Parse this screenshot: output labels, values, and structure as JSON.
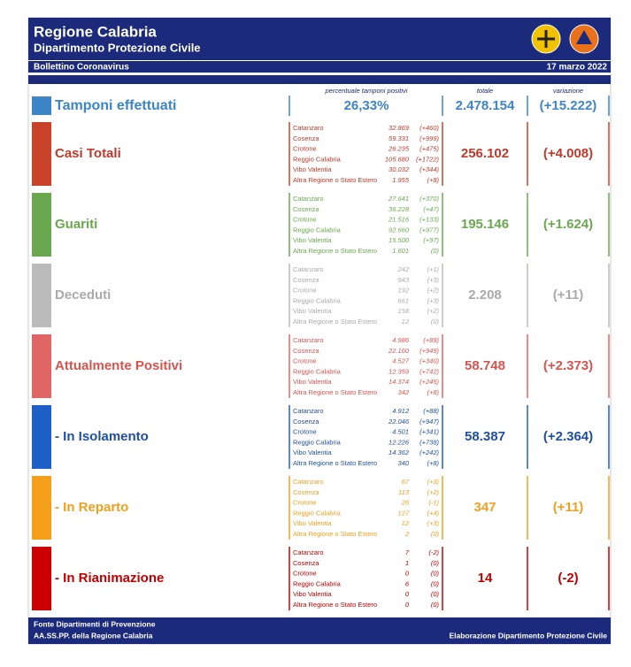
{
  "header": {
    "title": "Regione Calabria",
    "subtitle": "Dipartimento Protezione Civile",
    "bulletin": "Bollettino Coronavirus",
    "date": "17 marzo 2022"
  },
  "columns": {
    "percent": "percentuale tamponi positivi",
    "total": "totale",
    "variation": "variazione"
  },
  "tamponi": {
    "label": "Tamponi effettuati",
    "percent": "26,33%",
    "total": "2.478.154",
    "variation": "(+15.222)",
    "color": "#3d85c6"
  },
  "sections": [
    {
      "label": "Casi Totali",
      "color": "#c8432a",
      "text_color": "#c0392b",
      "rows": [
        [
          "Catanzaro",
          "32.869",
          "(+460)"
        ],
        [
          "Cosenza",
          "59.331",
          "(+999)"
        ],
        [
          "Crotone",
          "26.235",
          "(+475)"
        ],
        [
          "Reggio Calabria",
          "105.680",
          "(+1722)"
        ],
        [
          "Vibo Valentia",
          "30.032",
          "(+344)"
        ],
        [
          "Altra Regione o Stato Estero",
          "1.955",
          "(+8)"
        ]
      ],
      "total": "256.102",
      "variation": "(+4.008)"
    },
    {
      "label": "Guariti",
      "color": "#6aa84f",
      "text_color": "#6aa84f",
      "rows": [
        [
          "Catanzaro",
          "27.641",
          "(+370)"
        ],
        [
          "Cosenza",
          "36.228",
          "(+47)"
        ],
        [
          "Crotone",
          "21.516",
          "(+133)"
        ],
        [
          "Reggio Calabria",
          "92.660",
          "(+977)"
        ],
        [
          "Vibo Valentia",
          "15.500",
          "(+97)"
        ],
        [
          "Altra Regione o Stato Estero",
          "1.601",
          "(0)"
        ]
      ],
      "total": "195.146",
      "variation": "(+1.624)"
    },
    {
      "label": "Deceduti",
      "color": "#bbbbbb",
      "text_color": "#aaaaaa",
      "rows": [
        [
          "Catanzaro",
          "242",
          "(+1)"
        ],
        [
          "Cosenza",
          "943",
          "(+3)"
        ],
        [
          "Crotone",
          "192",
          "(+2)"
        ],
        [
          "Reggio Calabria",
          "661",
          "(+3)"
        ],
        [
          "Vibo Valentia",
          "158",
          "(+2)"
        ],
        [
          "Altra Regione o Stato Estero",
          "12",
          "(0)"
        ]
      ],
      "total": "2.208",
      "variation": "(+11)"
    },
    {
      "label": "Attualmente Positivi",
      "color": "#e06666",
      "text_color": "#d9534f",
      "rows": [
        [
          "Catanzaro",
          "4.986",
          "(+89)"
        ],
        [
          "Cosenza",
          "22.160",
          "(+949)"
        ],
        [
          "Crotone",
          "4.527",
          "(+340)"
        ],
        [
          "Reggio Calabria",
          "12.359",
          "(+742)"
        ],
        [
          "Vibo Valentia",
          "14.374",
          "(+245)"
        ],
        [
          "Altra Regione o Stato Estero",
          "342",
          "(+8)"
        ]
      ],
      "total": "58.748",
      "variation": "(+2.373)"
    },
    {
      "label": "- In Isolamento",
      "color": "#1f5fc8",
      "text_color": "#1f4fa0",
      "rows": [
        [
          "Catanzaro",
          "4.912",
          "(+88)"
        ],
        [
          "Cosenza",
          "22.046",
          "(+947)"
        ],
        [
          "Crotone",
          "4.501",
          "(+341)"
        ],
        [
          "Reggio Calabria",
          "12.226",
          "(+738)"
        ],
        [
          "Vibo Valentia",
          "14.362",
          "(+242)"
        ],
        [
          "Altra Regione o Stato Estero",
          "340",
          "(+8)"
        ]
      ],
      "total": "58.387",
      "variation": "(+2.364)"
    },
    {
      "label": "- In Reparto",
      "color": "#f5a01a",
      "text_color": "#f0a020",
      "rows": [
        [
          "Catanzaro",
          "67",
          "(+3)"
        ],
        [
          "Cosenza",
          "113",
          "(+2)"
        ],
        [
          "Crotone",
          "26",
          "(-1)"
        ],
        [
          "Reggio Calabria",
          "127",
          "(+4)"
        ],
        [
          "Vibo Valentia",
          "12",
          "(+3)"
        ],
        [
          "Altra Regione o Stato Estero",
          "2",
          "(0)"
        ]
      ],
      "total": "347",
      "variation": "(+11)"
    },
    {
      "label": "- In Rianimazione",
      "color": "#cc0000",
      "text_color": "#c00000",
      "rows": [
        [
          "Catanzaro",
          "7",
          "(-2)"
        ],
        [
          "Cosenza",
          "1",
          "(0)"
        ],
        [
          "Crotone",
          "0",
          "(0)"
        ],
        [
          "Reggio Calabria",
          "6",
          "(0)"
        ],
        [
          "Vibo Valentia",
          "0",
          "(0)"
        ],
        [
          "Altra Regione o Stato Estero",
          "0",
          "(0)"
        ]
      ],
      "total": "14",
      "variation": "(-2)"
    }
  ],
  "footer": {
    "source1": "Fonte Dipartimenti di Prevenzione",
    "source2": "AA.SS.PP.  della Regione Calabria",
    "credit": "Elaborazione Dipartimento Protezione Civile"
  }
}
